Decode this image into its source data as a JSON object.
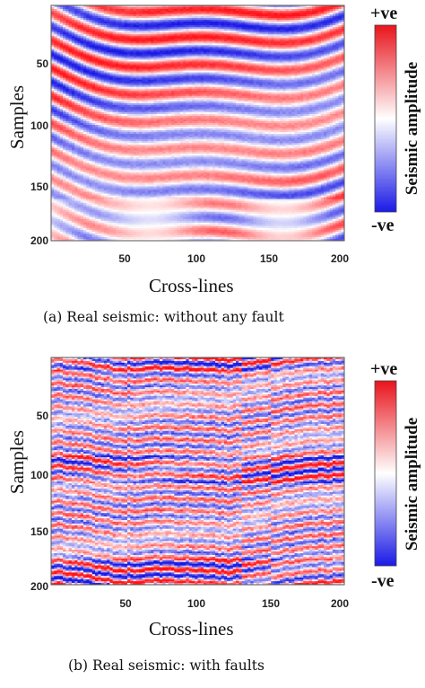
{
  "figures": [
    {
      "id": "a",
      "ylabel": "Samples",
      "xlabel": "Cross-lines",
      "yticks": [
        "50",
        "100",
        "150",
        "200"
      ],
      "xticks": [
        "50",
        "100",
        "150",
        "200"
      ],
      "colorbar": {
        "top": "+ve",
        "bottom": "-ve",
        "title": "Seismic amplitude"
      },
      "caption": "(a) Real seismic: without any fault",
      "has_faults": false
    },
    {
      "id": "b",
      "ylabel": "Samples",
      "xlabel": "Cross-lines",
      "yticks": [
        "50",
        "100",
        "150",
        "200"
      ],
      "xticks": [
        "50",
        "100",
        "150",
        "200"
      ],
      "colorbar": {
        "top": "+ve",
        "bottom": "-ve",
        "title": "Seismic amplitude"
      },
      "caption": "(b) Real seismic: with faults",
      "has_faults": true
    }
  ],
  "colors": {
    "positive": "#e8141c",
    "negative": "#1a1ae6",
    "neutral": "#ffffff"
  }
}
